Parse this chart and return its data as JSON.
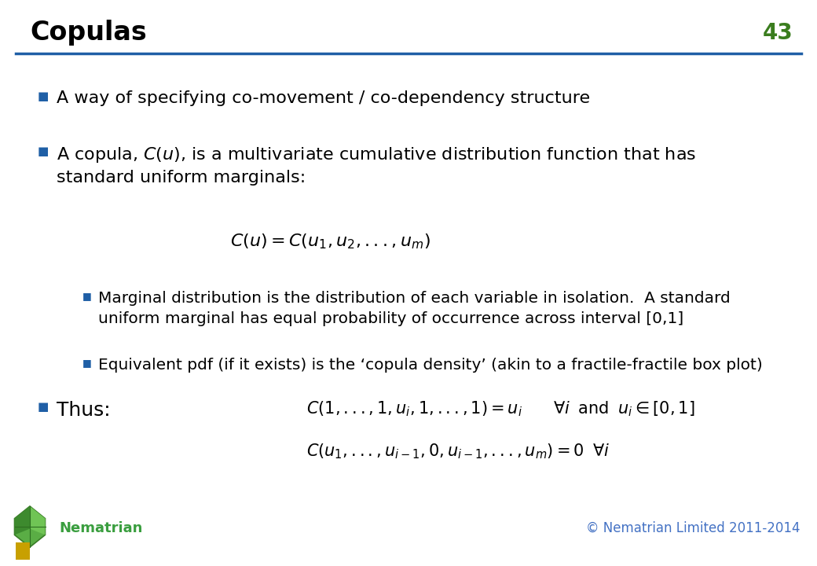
{
  "title": "Copulas",
  "slide_number": "43",
  "title_color": "#000000",
  "slide_number_color": "#3a7d1e",
  "title_fontsize": 22,
  "slide_number_fontsize": 20,
  "header_line_color": "#1f5fa6",
  "background_color": "#ffffff",
  "bullet_color": "#1f5fa6",
  "text_color": "#000000",
  "footer_text_left": "Nematrian",
  "footer_text_right": "© Nematrian Limited 2011-2014",
  "footer_color_left": "#3a9e3f",
  "footer_color_right": "#4472c4",
  "bullet_marker": "■"
}
